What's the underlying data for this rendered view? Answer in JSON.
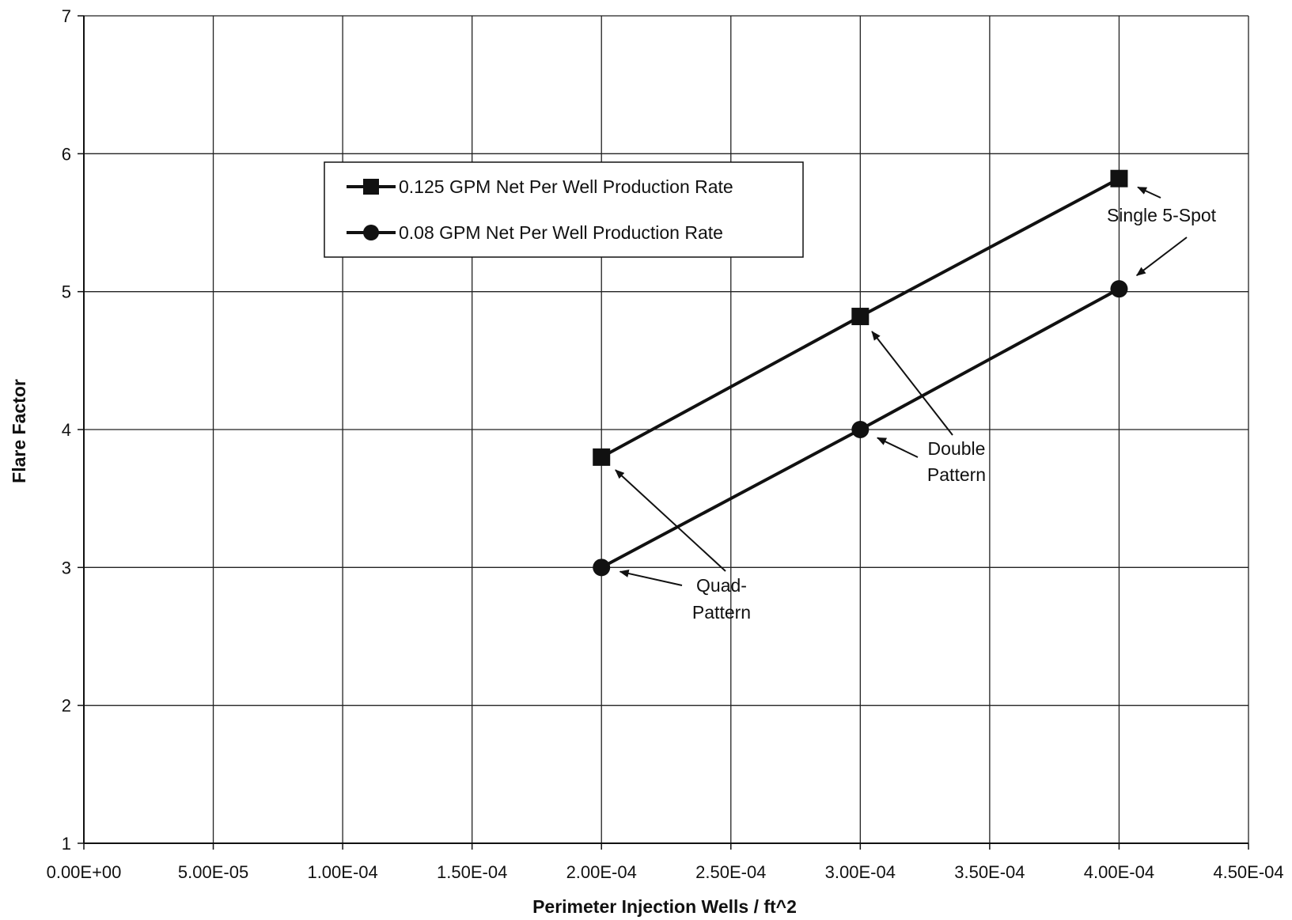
{
  "chart_data": {
    "type": "line",
    "title": "",
    "xlabel": "Perimeter Injection Wells / ft^2",
    "ylabel": "Flare Factor",
    "xlim": [
      0,
      0.00045
    ],
    "ylim": [
      1,
      7
    ],
    "x_ticks": [
      "0.00E+00",
      "5.00E-05",
      "1.00E-04",
      "1.50E-04",
      "2.00E-04",
      "2.50E-04",
      "3.00E-04",
      "3.50E-04",
      "4.00E-04",
      "4.50E-04"
    ],
    "y_ticks": [
      "1",
      "2",
      "3",
      "4",
      "5",
      "6",
      "7"
    ],
    "grid": true,
    "legend_position": "top-left",
    "series": [
      {
        "name": "0.125 GPM Net Per Well Production Rate",
        "marker": "square",
        "color": "#111111",
        "x": [
          0.0002,
          0.0003,
          0.0004
        ],
        "y": [
          3.8,
          4.82,
          5.82
        ]
      },
      {
        "name": "0.08 GPM Net Per Well Production Rate",
        "marker": "circle",
        "color": "#111111",
        "x": [
          0.0002,
          0.0003,
          0.0004
        ],
        "y": [
          3.0,
          4.0,
          5.02
        ]
      }
    ],
    "annotations": [
      {
        "lines": [
          "Single 5-Spot"
        ]
      },
      {
        "lines": [
          "Double",
          "Pattern"
        ]
      },
      {
        "lines": [
          "Quad-",
          "Pattern"
        ]
      }
    ]
  }
}
